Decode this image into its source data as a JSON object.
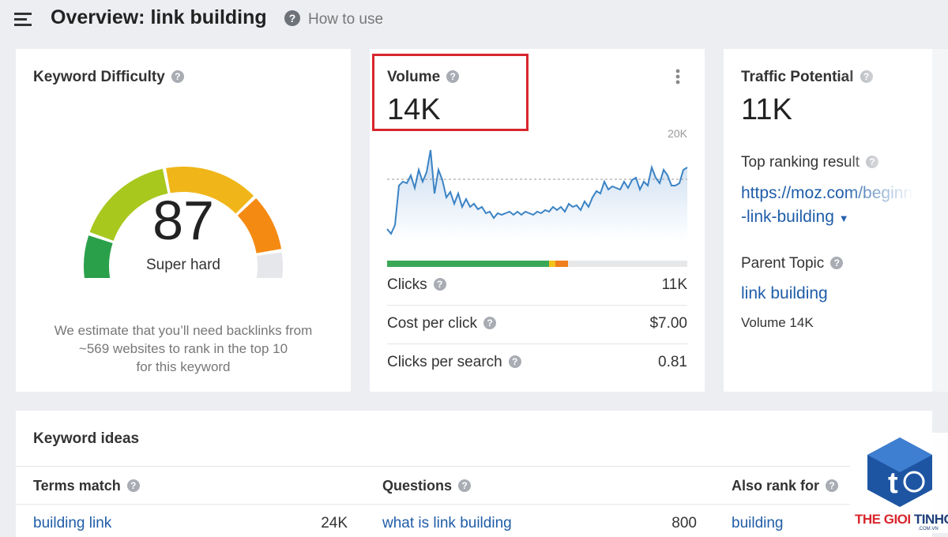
{
  "header": {
    "title": "Overview: link building",
    "help": "How to use"
  },
  "keyword_difficulty": {
    "title": "Keyword Difficulty",
    "score": 87,
    "rating": "Super hard",
    "note_lines": [
      "We estimate that you’ll need backlinks from",
      "~569 websites to rank in the top 10",
      "for this keyword"
    ]
  },
  "volume": {
    "title": "Volume",
    "value": "14K",
    "trend": {
      "ylim": [
        0,
        20000
      ],
      "yticks": [
        {
          "value": 20000,
          "label": "20K"
        }
      ],
      "values": [
        2400,
        1440,
        3200,
        11200,
        12000,
        11680,
        13280,
        10720,
        14400,
        12000,
        13920,
        18400,
        9600,
        14400,
        12320,
        8800,
        9920,
        7520,
        9600,
        6880,
        8480,
        6880,
        7520,
        6400,
        6880,
        5600,
        5920,
        4640,
        5600,
        5280,
        5600,
        5920,
        5280,
        5920,
        5280,
        5920,
        5600,
        5280,
        5920,
        5600,
        6240,
        5920,
        6880,
        6240,
        6880,
        5920,
        7520,
        6880,
        7200,
        6240,
        8000,
        6880,
        8800,
        10080,
        9600,
        12000,
        10400,
        11040,
        10720,
        10400,
        12000,
        10720,
        12320,
        12800,
        10400,
        12000,
        11200,
        14880,
        12800,
        11680,
        14400,
        13280,
        11200,
        11200,
        11680,
        14400,
        14880
      ]
    },
    "metrics": [
      {
        "label": "Clicks",
        "value": "11K"
      },
      {
        "label": "Cost per click",
        "value": "$7.00"
      },
      {
        "label": "Clicks per search",
        "value": "0.81"
      }
    ]
  },
  "traffic_potential": {
    "title": "Traffic Potential",
    "value": "11K",
    "top_ranking_label": "Top ranking result",
    "top_ranking_url_lines": [
      "https://moz.com/beginners-guide",
      "-link-building"
    ],
    "parent_topic_label": "Parent Topic",
    "parent_topic": "link building",
    "parent_volume": "Volume 14K"
  },
  "keyword_ideas": {
    "title": "Keyword ideas",
    "columns": [
      {
        "title": "Terms match",
        "rows": [
          {
            "keyword": "building link",
            "volume": "24K"
          }
        ]
      },
      {
        "title": "Questions",
        "rows": [
          {
            "keyword": "what is link building",
            "volume": "800"
          }
        ]
      },
      {
        "title": "Also rank for",
        "rows": [
          {
            "keyword": "building"
          }
        ]
      }
    ]
  },
  "watermark": {
    "brand_1": "THE GIOI",
    "brand_2": "TINHOC",
    "domain": ".COM.VN"
  }
}
